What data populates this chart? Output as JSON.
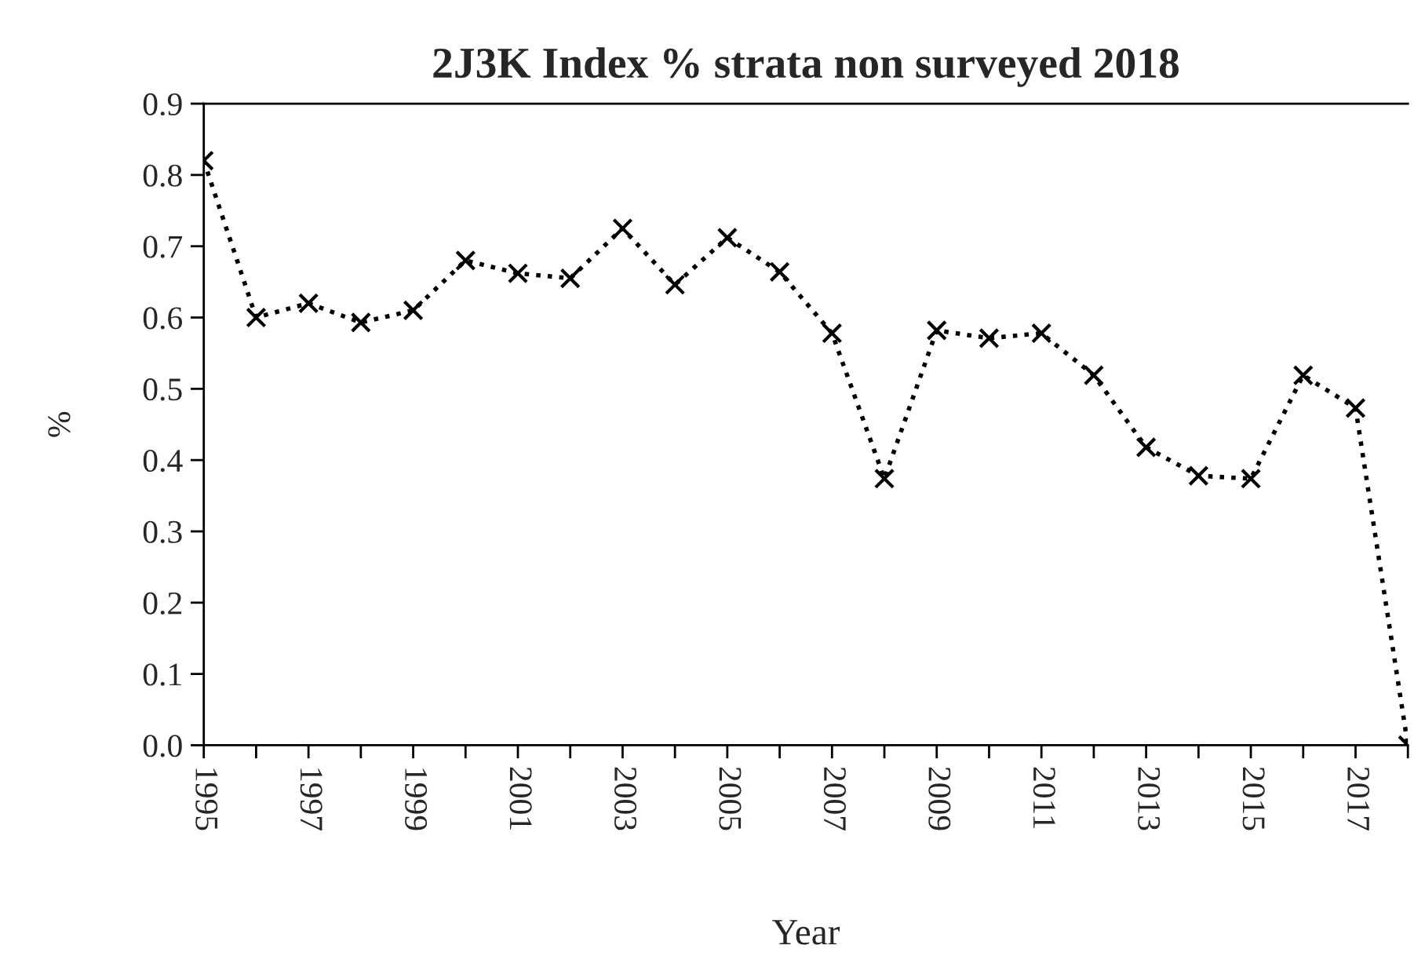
{
  "chart_data": {
    "type": "line",
    "title": "2J3K Index % strata non surveyed 2018",
    "xlabel": "Year",
    "ylabel": "%",
    "categories": [
      "1995",
      null,
      "1997",
      null,
      "1999",
      null,
      "2001",
      null,
      "2003",
      null,
      "2005",
      null,
      "2007",
      null,
      "2009",
      null,
      "2011",
      null,
      "2013",
      null,
      "2015",
      null,
      "2017",
      null
    ],
    "series": [
      {
        "color": "#000000",
        "values": [
          0.82,
          0.6,
          0.62,
          0.593,
          0.61,
          0.68,
          0.662,
          0.655,
          0.725,
          0.646,
          0.712,
          0.664,
          0.578,
          0.374,
          0.582,
          0.571,
          0.578,
          0.519,
          0.418,
          0.378,
          0.374,
          0.519,
          0.473,
          0.0
        ]
      }
    ],
    "ylim": [
      0,
      0.9
    ],
    "yticks": [
      {
        "value": 0,
        "label": "0.0"
      },
      0.1,
      0.2,
      0.3,
      0.4,
      0.5,
      0.6,
      0.7,
      0.8,
      0.9
    ],
    "grid": false,
    "legend": false,
    "marker": "cross",
    "line_style": "dotted"
  }
}
